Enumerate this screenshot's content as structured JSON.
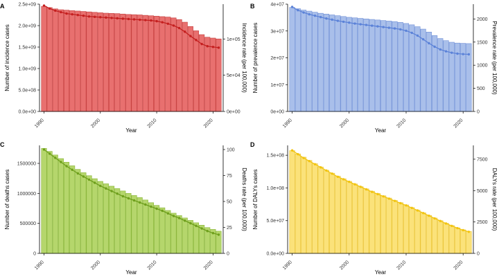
{
  "chart_data": [
    {
      "panel": "A",
      "type": "bar",
      "color": "#E8706F",
      "stroke": "#C43B3A",
      "line_color": "#C41F1F",
      "x_ticks": [
        1990,
        2000,
        2010,
        2020
      ],
      "xlabel": "Year",
      "ylabel": "Number of incidence cases",
      "ylabel_right": "Incidence rate (per 100,000)",
      "left_ticks": [
        {
          "v": 0,
          "label": "0.0e+00"
        },
        {
          "v": 500000000,
          "label": "5.0e+08"
        },
        {
          "v": 1000000000,
          "label": "1.0e+09"
        },
        {
          "v": 1500000000,
          "label": "1.5e+09"
        },
        {
          "v": 2000000000,
          "label": "2.0e+09"
        },
        {
          "v": 2500000000,
          "label": "2.5e+09"
        }
      ],
      "left_max": 2500000000,
      "right_ticks": [
        {
          "v": 0,
          "label": "0e+00"
        },
        {
          "v": 50000,
          "label": "5e+04"
        },
        {
          "v": 100000,
          "label": "1e+05"
        }
      ],
      "right_max": 148000,
      "years": [
        1990,
        1991,
        1992,
        1993,
        1994,
        1995,
        1996,
        1997,
        1998,
        1999,
        2000,
        2001,
        2002,
        2003,
        2004,
        2005,
        2006,
        2007,
        2008,
        2009,
        2010,
        2011,
        2012,
        2013,
        2014,
        2015,
        2016,
        2017,
        2018,
        2019,
        2020,
        2021
      ],
      "counts": [
        2450000000,
        2420000000,
        2390000000,
        2370000000,
        2360000000,
        2350000000,
        2340000000,
        2330000000,
        2320000000,
        2310000000,
        2300000000,
        2290000000,
        2285000000,
        2280000000,
        2270000000,
        2260000000,
        2255000000,
        2250000000,
        2240000000,
        2230000000,
        2220000000,
        2210000000,
        2200000000,
        2180000000,
        2140000000,
        2080000000,
        1980000000,
        1880000000,
        1790000000,
        1730000000,
        1710000000,
        1690000000
      ],
      "rates": [
        146000,
        142000,
        139000,
        137000,
        135000,
        134000,
        133000,
        132000,
        131000,
        130500,
        130000,
        129500,
        129000,
        128500,
        128000,
        127500,
        127000,
        126500,
        126000,
        125500,
        124500,
        123000,
        121000,
        118500,
        115000,
        110000,
        104000,
        98500,
        93000,
        90000,
        89000,
        88000
      ]
    },
    {
      "panel": "B",
      "type": "bar",
      "color": "#A9BFEA",
      "stroke": "#6F8FD6",
      "line_color": "#5B82D8",
      "x_ticks": [
        1990,
        2000,
        2010,
        2020
      ],
      "xlabel": "Year",
      "ylabel": "Number of prevalence cases",
      "ylabel_right": "Prevalence rate (per 100,000)",
      "left_ticks": [
        {
          "v": 0,
          "label": "0e+00"
        },
        {
          "v": 10000000,
          "label": "1e+07"
        },
        {
          "v": 20000000,
          "label": "2e+07"
        },
        {
          "v": 30000000,
          "label": "3e+07"
        },
        {
          "v": 40000000,
          "label": "4e+07"
        }
      ],
      "left_max": 40000000,
      "right_ticks": [
        {
          "v": 0,
          "label": "0"
        },
        {
          "v": 500,
          "label": "500"
        },
        {
          "v": 1000,
          "label": "1000"
        },
        {
          "v": 1500,
          "label": "1500"
        },
        {
          "v": 2000,
          "label": "2000"
        }
      ],
      "right_max": 2320,
      "years": [
        1990,
        1991,
        1992,
        1993,
        1994,
        1995,
        1996,
        1997,
        1998,
        1999,
        2000,
        2001,
        2002,
        2003,
        2004,
        2005,
        2006,
        2007,
        2008,
        2009,
        2010,
        2011,
        2012,
        2013,
        2014,
        2015,
        2016,
        2017,
        2018,
        2019,
        2020,
        2021
      ],
      "counts": [
        38800000,
        38300000,
        37800000,
        37400000,
        37000000,
        36600000,
        36300000,
        36000000,
        35700000,
        35400000,
        35100000,
        34900000,
        34700000,
        34500000,
        34300000,
        34100000,
        33900000,
        33700000,
        33500000,
        33200000,
        32800000,
        32300000,
        31600000,
        30700000,
        29600000,
        28300000,
        27200000,
        26400000,
        25800000,
        25500000,
        25400000,
        25300000
      ],
      "rates": [
        2260,
        2190,
        2140,
        2100,
        2070,
        2040,
        2010,
        1985,
        1960,
        1940,
        1920,
        1900,
        1885,
        1870,
        1855,
        1840,
        1825,
        1810,
        1795,
        1775,
        1745,
        1700,
        1640,
        1560,
        1475,
        1400,
        1340,
        1300,
        1270,
        1250,
        1240,
        1235
      ]
    },
    {
      "panel": "C",
      "type": "bar",
      "color": "#B5D66C",
      "stroke": "#86B335",
      "line_color": "#6E9F1C",
      "x_ticks": [
        1990,
        2000,
        2010,
        2020
      ],
      "xlabel": "Year",
      "ylabel": "Number of deaths cases",
      "ylabel_right": "Deaths rate (per 100,000)",
      "left_ticks": [
        {
          "v": 0,
          "label": "0"
        },
        {
          "v": 500000,
          "label": "500000"
        },
        {
          "v": 1000000,
          "label": "1000000"
        },
        {
          "v": 1500000,
          "label": "1500000"
        }
      ],
      "left_max": 1800000,
      "right_ticks": [
        {
          "v": 0,
          "label": "0"
        },
        {
          "v": 25,
          "label": "25"
        },
        {
          "v": 50,
          "label": "50"
        },
        {
          "v": 75,
          "label": "75"
        },
        {
          "v": 100,
          "label": "100"
        }
      ],
      "right_max": 104,
      "years": [
        1990,
        1991,
        1992,
        1993,
        1994,
        1995,
        1996,
        1997,
        1998,
        1999,
        2000,
        2001,
        2002,
        2003,
        2004,
        2005,
        2006,
        2007,
        2008,
        2009,
        2010,
        2011,
        2012,
        2013,
        2014,
        2015,
        2016,
        2017,
        2018,
        2019,
        2020,
        2021
      ],
      "counts": [
        1750000,
        1700000,
        1640000,
        1580000,
        1520000,
        1460000,
        1400000,
        1345000,
        1295000,
        1245000,
        1200000,
        1160000,
        1120000,
        1080000,
        1040000,
        1000000,
        965000,
        930000,
        890000,
        845000,
        800000,
        760000,
        715000,
        670000,
        630000,
        590000,
        550000,
        510000,
        470000,
        430000,
        400000,
        370000
      ],
      "rates": [
        100,
        96,
        92,
        88,
        84,
        80.5,
        77,
        74,
        71,
        68,
        65,
        62.5,
        60,
        57.5,
        55,
        53,
        51,
        49,
        47,
        45,
        43,
        41,
        38.5,
        36,
        34,
        31.5,
        29,
        26.5,
        24,
        21.5,
        19.5,
        18
      ]
    },
    {
      "panel": "D",
      "type": "bar",
      "color": "#FBE27A",
      "stroke": "#E8C12C",
      "line_color": "#F2C40F",
      "x_ticks": [
        1990,
        2000,
        2010,
        2020
      ],
      "xlabel": "Year",
      "ylabel": "Number of DALYs cases",
      "ylabel_right": "DALYs rate (per 100,000)",
      "left_ticks": [
        {
          "v": 0,
          "label": "0.0e+00"
        },
        {
          "v": 50000000,
          "label": "5.0e+07"
        },
        {
          "v": 100000000,
          "label": "1.0e+08"
        },
        {
          "v": 150000000,
          "label": "1.5e+08"
        }
      ],
      "left_max": 165000000,
      "right_ticks": [
        {
          "v": 0,
          "label": "0"
        },
        {
          "v": 2500,
          "label": "2500"
        },
        {
          "v": 5000,
          "label": "5000"
        },
        {
          "v": 7500,
          "label": "7500"
        }
      ],
      "right_max": 8600,
      "years": [
        1990,
        1991,
        1992,
        1993,
        1994,
        1995,
        1996,
        1997,
        1998,
        1999,
        2000,
        2001,
        2002,
        2003,
        2004,
        2005,
        2006,
        2007,
        2008,
        2009,
        2010,
        2011,
        2012,
        2013,
        2014,
        2015,
        2016,
        2017,
        2018,
        2019,
        2020,
        2021
      ],
      "counts": [
        157000000,
        152000000,
        147000000,
        142000000,
        137000000,
        132000000,
        127000000,
        122500000,
        118000000,
        114000000,
        110000000,
        106000000,
        102000000,
        98500000,
        95000000,
        91500000,
        88000000,
        84500000,
        81000000,
        77500000,
        74000000,
        70000000,
        66000000,
        62000000,
        58000000,
        54000000,
        50000000,
        46000000,
        42500000,
        39000000,
        36000000,
        33500000
      ],
      "rates": [
        8200,
        7900,
        7600,
        7350,
        7100,
        6850,
        6600,
        6350,
        6100,
        5900,
        5700,
        5500,
        5300,
        5100,
        4900,
        4720,
        4540,
        4360,
        4180,
        4000,
        3820,
        3620,
        3420,
        3210,
        3000,
        2790,
        2580,
        2380,
        2190,
        2010,
        1850,
        1720
      ]
    }
  ]
}
